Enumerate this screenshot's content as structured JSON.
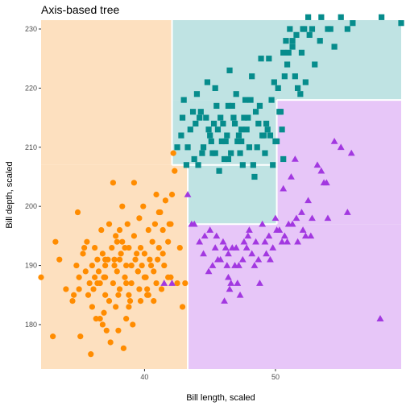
{
  "chart_data": {
    "type": "scatter",
    "title": "Axis-based tree",
    "xlabel": "Bill length, scaled",
    "ylabel": "Bill depth, scaled",
    "xlim": [
      32.1,
      59.6
    ],
    "ylim": [
      172.5,
      231.5
    ],
    "x_ticks": [
      40,
      50
    ],
    "y_ticks": [
      180,
      190,
      200,
      210,
      220,
      230
    ],
    "grid": false,
    "legend": "none",
    "regions": [
      {
        "class": "orange",
        "x": [
          32.1,
          43.3
        ],
        "y": [
          172.5,
          207.0
        ]
      },
      {
        "class": "orange",
        "x": [
          32.1,
          42.1
        ],
        "y": [
          207.0,
          231.5
        ]
      },
      {
        "class": "teal",
        "x": [
          42.1,
          59.6
        ],
        "y": [
          218.0,
          231.5
        ]
      },
      {
        "class": "teal",
        "x": [
          42.1,
          50.1
        ],
        "y": [
          207.0,
          218.0
        ]
      },
      {
        "class": "teal",
        "x": [
          43.3,
          50.1
        ],
        "y": [
          197.0,
          207.0
        ]
      },
      {
        "class": "purple",
        "x": [
          43.3,
          59.6
        ],
        "y": [
          172.5,
          197.0
        ]
      },
      {
        "class": "purple",
        "x": [
          50.1,
          59.6
        ],
        "y": [
          197.0,
          218.0
        ]
      }
    ],
    "boundaries": [
      {
        "x": [
          42.1,
          42.1
        ],
        "y": [
          207.0,
          231.5
        ]
      },
      {
        "x": [
          43.3,
          43.3
        ],
        "y": [
          172.5,
          207.0
        ]
      },
      {
        "x": [
          42.1,
          50.1
        ],
        "y": [
          207.0,
          207.0
        ]
      },
      {
        "x": [
          43.3,
          50.1
        ],
        "y": [
          197.0,
          197.0
        ]
      },
      {
        "x": [
          50.1,
          50.1
        ],
        "y": [
          197.0,
          218.0
        ]
      },
      {
        "x": [
          50.1,
          59.6
        ],
        "y": [
          218.0,
          218.0
        ]
      }
    ],
    "colors": {
      "orange_region": "#fde0bf",
      "teal_region": "#bfe3e3",
      "purple_region": "#e7c6f8",
      "orange_point": "#ff8c00",
      "teal_point": "#068c8c",
      "purple_point": "#a238e0",
      "boundary": "#ffffff"
    },
    "series": [
      {
        "class": "orange",
        "marker": "circle",
        "x": [
          32.1,
          33.0,
          33.5,
          34.0,
          34.5,
          34.8,
          35.0,
          35.0,
          35.3,
          35.5,
          35.6,
          35.7,
          35.8,
          36.0,
          36.0,
          36.2,
          36.2,
          36.4,
          36.5,
          36.6,
          36.7,
          36.8,
          36.9,
          37.0,
          37.0,
          37.0,
          37.2,
          37.3,
          37.3,
          37.5,
          37.6,
          37.7,
          37.8,
          37.8,
          37.9,
          38.0,
          38.1,
          38.1,
          38.2,
          38.3,
          38.5,
          38.6,
          38.6,
          38.7,
          38.8,
          38.8,
          39.0,
          39.0,
          39.1,
          39.2,
          39.3,
          39.5,
          39.6,
          39.6,
          39.7,
          39.8,
          40.0,
          40.1,
          40.2,
          40.3,
          40.5,
          40.6,
          40.7,
          40.8,
          40.9,
          41.0,
          41.1,
          41.1,
          41.3,
          41.4,
          41.5,
          41.6,
          41.8,
          41.8,
          42.0,
          42.1,
          42.2,
          42.3,
          42.5,
          42.7,
          42.9,
          43.1,
          35.9,
          36.3,
          37.1,
          37.4,
          38.4,
          38.9,
          39.4,
          40.4,
          40.0,
          38.0,
          36.1,
          34.6,
          39.9,
          41.2,
          37.6,
          35.4,
          39.2,
          38.1,
          40.7,
          36.6,
          42.0,
          40.9,
          38.8,
          37.9,
          36.8,
          33.2,
          39.5,
          41.9,
          37.0,
          38.3,
          39.7,
          36.4,
          35.1,
          40.2,
          38.6,
          41.4,
          37.7,
          39.0,
          34.9,
          38.5,
          40.3,
          36.9
        ],
        "y": [
          188,
          178,
          191,
          186,
          184,
          190,
          188,
          186,
          192,
          189,
          194,
          185,
          187,
          190,
          183,
          188,
          193,
          191,
          189,
          187,
          196,
          192,
          182,
          190,
          185,
          188,
          191,
          184,
          197,
          193,
          187,
          190,
          195,
          183,
          189,
          179,
          191,
          186,
          192,
          194,
          188,
          181,
          190,
          197,
          185,
          193,
          190,
          187,
          180,
          195,
          191,
          189,
          186,
          198,
          193,
          190,
          192,
          188,
          185,
          196,
          190,
          194,
          189,
          197,
          187,
          191,
          199,
          193,
          186,
          196,
          190,
          201,
          194,
          188,
          197,
          202,
          209,
          206,
          187,
          193,
          183,
          187,
          175,
          181,
          179,
          177,
          176,
          184,
          192,
          191,
          188,
          185,
          186,
          185,
          200,
          199,
          204,
          193,
          204,
          196,
          184,
          181,
          188,
          202,
          183,
          194,
          180,
          194,
          189,
          197,
          191,
          200,
          184,
          187,
          178,
          186,
          187,
          192,
          191,
          190,
          199,
          193,
          185,
          188
        ]
      },
      {
        "class": "teal",
        "marker": "square",
        "x": [
          42.5,
          42.9,
          43.2,
          43.5,
          43.8,
          44.0,
          44.3,
          44.5,
          44.8,
          45.0,
          45.2,
          45.5,
          45.7,
          46.0,
          46.2,
          46.4,
          46.5,
          46.8,
          47.0,
          47.2,
          47.5,
          47.7,
          48.0,
          48.2,
          48.4,
          48.5,
          48.7,
          49.0,
          49.2,
          49.5,
          49.7,
          50.0,
          50.2,
          50.4,
          50.5,
          50.7,
          50.9,
          51.0,
          51.3,
          51.5,
          51.7,
          52.0,
          52.2,
          52.5,
          52.8,
          53.0,
          53.4,
          54.0,
          54.5,
          55.0,
          55.5,
          55.9,
          58.1,
          59.6,
          42.8,
          43.0,
          43.7,
          44.1,
          44.9,
          45.4,
          45.8,
          46.3,
          46.7,
          47.3,
          47.8,
          48.3,
          48.8,
          49.3,
          49.8,
          50.3,
          50.8,
          51.3,
          51.9,
          52.3,
          43.3,
          44.4,
          45.1,
          45.6,
          46.1,
          46.6,
          47.1,
          47.6,
          48.1,
          48.6,
          49.1,
          49.6,
          50.1,
          50.6,
          43.9,
          44.7,
          45.3,
          45.9,
          46.9,
          47.4,
          47.9,
          48.9,
          49.4,
          49.9,
          50.6,
          51.1,
          51.6,
          52.1,
          52.6,
          53.5,
          54.2,
          44.2,
          45.4,
          46.4,
          47.4
        ],
        "y": [
          210,
          215,
          207,
          213,
          208,
          219,
          216,
          210,
          221,
          212,
          209,
          217,
          206,
          214,
          211,
          208,
          223,
          215,
          219,
          212,
          207,
          218,
          210,
          222,
          205,
          216,
          214,
          212,
          209,
          225,
          218,
          211,
          220,
          216,
          213,
          222,
          224,
          226,
          228,
          222,
          220,
          226,
          230,
          232,
          230,
          224,
          228,
          230,
          227,
          232,
          230,
          231,
          232,
          231,
          212,
          218,
          216,
          207,
          213,
          209,
          215,
          212,
          217,
          209,
          213,
          207,
          217,
          214,
          207,
          216,
          228,
          227,
          219,
          221,
          210,
          209,
          211,
          213,
          208,
          209,
          211,
          215,
          218,
          210,
          212,
          212,
          211,
          208,
          214,
          215,
          214,
          211,
          214,
          211,
          215,
          225,
          213,
          221,
          226,
          230,
          229,
          230,
          229,
          232,
          230,
          215,
          220,
          217,
          213
        ]
      },
      {
        "class": "purple",
        "marker": "triangle",
        "x": [
          41.5,
          42.1,
          43.3,
          43.8,
          44.2,
          44.5,
          45.0,
          45.2,
          45.5,
          45.8,
          46.0,
          46.2,
          46.4,
          46.5,
          46.7,
          46.9,
          47.1,
          47.3,
          47.5,
          47.6,
          47.8,
          48.0,
          48.2,
          48.5,
          48.7,
          49.0,
          49.2,
          49.5,
          49.8,
          50.0,
          50.3,
          50.5,
          50.7,
          51.0,
          51.3,
          51.5,
          51.7,
          52.0,
          52.3,
          52.5,
          52.8,
          53.2,
          53.5,
          53.7,
          54.0,
          54.5,
          55.0,
          55.5,
          58.0,
          43.6,
          44.9,
          45.6,
          46.3,
          46.6,
          47.0,
          47.9,
          48.4,
          49.3,
          50.1,
          50.9,
          51.6,
          52.1,
          52.7,
          46.1,
          45.4,
          47.2,
          48.8,
          50.6,
          51.2,
          49.6,
          44.6,
          46.4,
          53.9,
          55.8,
          58.0
        ],
        "y": [
          187,
          187,
          202,
          197,
          194,
          192,
          196,
          190,
          195,
          191,
          194,
          193,
          188,
          186,
          193,
          190,
          187,
          185,
          191,
          194,
          193,
          196,
          192,
          194,
          191,
          197,
          194,
          195,
          193,
          198,
          196,
          194,
          195,
          197,
          197,
          208,
          194,
          199,
          195,
          201,
          198,
          207,
          206,
          204,
          198,
          211,
          210,
          199,
          181,
          197,
          189,
          191,
          190,
          187,
          193,
          195,
          190,
          192,
          196,
          194,
          198,
          196,
          195,
          184,
          193,
          190,
          187,
          203,
          205,
          191,
          195,
          192,
          204,
          209,
          181
        ]
      }
    ]
  }
}
